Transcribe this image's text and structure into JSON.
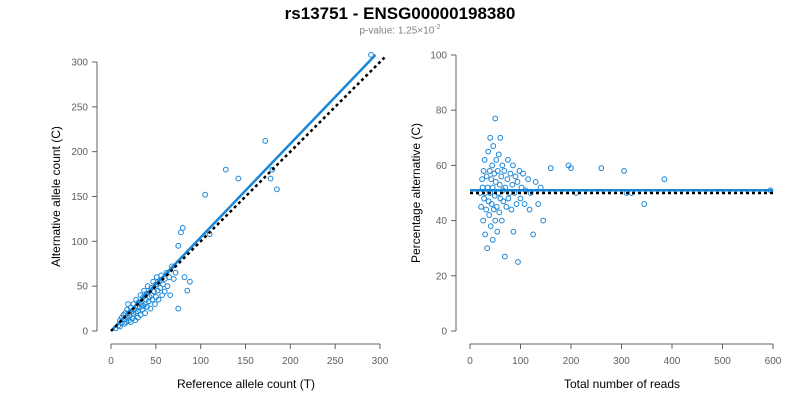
{
  "title": "rs13751 - ENSG00000198380",
  "subtitle": {
    "prefix": "p-value: 1.25×10",
    "exponent": "-2"
  },
  "colors": {
    "points": "#1a86d8",
    "fit_line": "#1a86d8",
    "reference_line": "#000000",
    "axis": "#606060"
  },
  "chart_data": [
    {
      "type": "scatter",
      "xlabel": "Reference allele count (T)",
      "ylabel": "Alternative allele count (C)",
      "xlim": [
        0,
        300
      ],
      "ylim": [
        0,
        300
      ],
      "xticks": [
        0,
        50,
        100,
        150,
        200,
        250,
        300
      ],
      "yticks": [
        0,
        50,
        100,
        150,
        200,
        250,
        300
      ],
      "grid": false,
      "lines": [
        {
          "style": "solid",
          "x": [
            0,
            295
          ],
          "y": [
            0,
            308
          ]
        },
        {
          "style": "dotted",
          "x": [
            0,
            305
          ],
          "y": [
            0,
            305
          ]
        }
      ],
      "points": [
        [
          5,
          3
        ],
        [
          8,
          6
        ],
        [
          10,
          12
        ],
        [
          10,
          5
        ],
        [
          12,
          15
        ],
        [
          12,
          9
        ],
        [
          14,
          18
        ],
        [
          15,
          8
        ],
        [
          15,
          13
        ],
        [
          16,
          20
        ],
        [
          17,
          10
        ],
        [
          18,
          24
        ],
        [
          18,
          15
        ],
        [
          19,
          30
        ],
        [
          20,
          12
        ],
        [
          20,
          20
        ],
        [
          21,
          17
        ],
        [
          22,
          26
        ],
        [
          22,
          10
        ],
        [
          23,
          22
        ],
        [
          24,
          14
        ],
        [
          25,
          30
        ],
        [
          25,
          19
        ],
        [
          26,
          24
        ],
        [
          27,
          12
        ],
        [
          28,
          35
        ],
        [
          28,
          20
        ],
        [
          29,
          27
        ],
        [
          30,
          22
        ],
        [
          30,
          15
        ],
        [
          31,
          32
        ],
        [
          32,
          26
        ],
        [
          33,
          40
        ],
        [
          33,
          18
        ],
        [
          34,
          30
        ],
        [
          35,
          24
        ],
        [
          36,
          38
        ],
        [
          36,
          28
        ],
        [
          37,
          45
        ],
        [
          38,
          30
        ],
        [
          38,
          20
        ],
        [
          39,
          35
        ],
        [
          40,
          42
        ],
        [
          40,
          27
        ],
        [
          41,
          50
        ],
        [
          42,
          33
        ],
        [
          43,
          38
        ],
        [
          44,
          25
        ],
        [
          45,
          48
        ],
        [
          45,
          40
        ],
        [
          46,
          35
        ],
        [
          47,
          55
        ],
        [
          48,
          44
        ],
        [
          49,
          30
        ],
        [
          50,
          52
        ],
        [
          50,
          38
        ],
        [
          51,
          60
        ],
        [
          52,
          45
        ],
        [
          53,
          35
        ],
        [
          54,
          56
        ],
        [
          55,
          48
        ],
        [
          56,
          62
        ],
        [
          57,
          40
        ],
        [
          58,
          52
        ],
        [
          60,
          58
        ],
        [
          60,
          44
        ],
        [
          62,
          65
        ],
        [
          63,
          50
        ],
        [
          65,
          60
        ],
        [
          66,
          40
        ],
        [
          68,
          72
        ],
        [
          70,
          58
        ],
        [
          72,
          65
        ],
        [
          75,
          95
        ],
        [
          75,
          25
        ],
        [
          78,
          110
        ],
        [
          80,
          115
        ],
        [
          82,
          60
        ],
        [
          85,
          45
        ],
        [
          88,
          55
        ],
        [
          105,
          152
        ],
        [
          110,
          108
        ],
        [
          128,
          180
        ],
        [
          142,
          170
        ],
        [
          172,
          212
        ],
        [
          178,
          170
        ],
        [
          180,
          180
        ],
        [
          185,
          158
        ],
        [
          290,
          308
        ]
      ]
    },
    {
      "type": "scatter",
      "xlabel": "Total number of reads",
      "ylabel": "Percentage alternative (C)",
      "xlim": [
        0,
        600
      ],
      "ylim": [
        0,
        100
      ],
      "xticks": [
        0,
        100,
        200,
        300,
        400,
        500,
        600
      ],
      "yticks": [
        0,
        20,
        40,
        60,
        80,
        100
      ],
      "grid": false,
      "lines": [
        {
          "style": "solid",
          "x": [
            0,
            600
          ],
          "y": [
            51,
            51
          ]
        },
        {
          "style": "dotted",
          "x": [
            0,
            600
          ],
          "y": [
            50,
            50
          ]
        }
      ],
      "points": [
        [
          20,
          50
        ],
        [
          22,
          45
        ],
        [
          24,
          55
        ],
        [
          25,
          52
        ],
        [
          26,
          40
        ],
        [
          27,
          58
        ],
        [
          28,
          48
        ],
        [
          29,
          62
        ],
        [
          30,
          35
        ],
        [
          30,
          50
        ],
        [
          32,
          44
        ],
        [
          33,
          56
        ],
        [
          34,
          30
        ],
        [
          35,
          52
        ],
        [
          36,
          65
        ],
        [
          37,
          47
        ],
        [
          38,
          42
        ],
        [
          39,
          58
        ],
        [
          40,
          50
        ],
        [
          40,
          70
        ],
        [
          41,
          38
        ],
        [
          42,
          55
        ],
        [
          43,
          46
        ],
        [
          44,
          60
        ],
        [
          45,
          33
        ],
        [
          45,
          52
        ],
        [
          46,
          67
        ],
        [
          47,
          44
        ],
        [
          48,
          57
        ],
        [
          49,
          49
        ],
        [
          50,
          77
        ],
        [
          50,
          40
        ],
        [
          51,
          54
        ],
        [
          52,
          62
        ],
        [
          53,
          45
        ],
        [
          54,
          36
        ],
        [
          55,
          58
        ],
        [
          56,
          50
        ],
        [
          57,
          64
        ],
        [
          58,
          43
        ],
        [
          59,
          53
        ],
        [
          60,
          48
        ],
        [
          60,
          70
        ],
        [
          62,
          56
        ],
        [
          63,
          40
        ],
        [
          64,
          60
        ],
        [
          65,
          51
        ],
        [
          66,
          47
        ],
        [
          68,
          58
        ],
        [
          69,
          27
        ],
        [
          70,
          52
        ],
        [
          72,
          45
        ],
        [
          74,
          55
        ],
        [
          75,
          62
        ],
        [
          76,
          48
        ],
        [
          78,
          50
        ],
        [
          80,
          57
        ],
        [
          82,
          44
        ],
        [
          84,
          53
        ],
        [
          85,
          60
        ],
        [
          86,
          36
        ],
        [
          88,
          50
        ],
        [
          90,
          56
        ],
        [
          92,
          46
        ],
        [
          94,
          54
        ],
        [
          95,
          25
        ],
        [
          98,
          58
        ],
        [
          100,
          48
        ],
        [
          102,
          52
        ],
        [
          105,
          57
        ],
        [
          108,
          46
        ],
        [
          110,
          51
        ],
        [
          115,
          55
        ],
        [
          118,
          44
        ],
        [
          120,
          50
        ],
        [
          125,
          35
        ],
        [
          130,
          54
        ],
        [
          135,
          46
        ],
        [
          140,
          52
        ],
        [
          145,
          40
        ],
        [
          160,
          59
        ],
        [
          195,
          60
        ],
        [
          200,
          59
        ],
        [
          210,
          50
        ],
        [
          260,
          59
        ],
        [
          305,
          58
        ],
        [
          310,
          50
        ],
        [
          320,
          50
        ],
        [
          345,
          46
        ],
        [
          385,
          55
        ],
        [
          595,
          51
        ]
      ]
    }
  ]
}
